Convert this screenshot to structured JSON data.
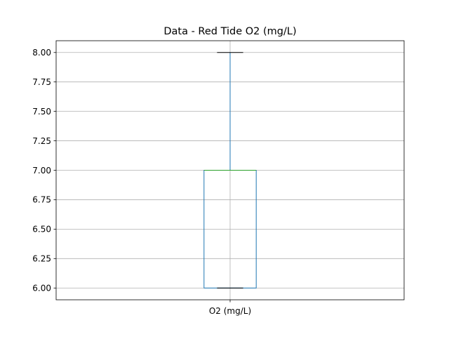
{
  "chart_data": {
    "type": "box",
    "title": "Data - Red Tide O2 (mg/L)",
    "categories": [
      "O2 (mg/L)"
    ],
    "boxes": [
      {
        "name": "O2 (mg/L)",
        "whisker_low": 6.0,
        "q1": 6.0,
        "median": 7.0,
        "q3": 7.0,
        "whisker_high": 8.0
      }
    ],
    "ylim": [
      5.9,
      8.1
    ],
    "yticks": [
      6.0,
      6.25,
      6.5,
      6.75,
      7.0,
      7.25,
      7.5,
      7.75,
      8.0
    ],
    "ytick_labels": [
      "6.00",
      "6.25",
      "6.50",
      "6.75",
      "7.00",
      "7.25",
      "7.50",
      "7.75",
      "8.00"
    ],
    "grid": true,
    "colors": {
      "box": "#1f77b4",
      "median": "#2ca02c",
      "cap": "#000000",
      "grid": "#b0b0b0"
    }
  }
}
